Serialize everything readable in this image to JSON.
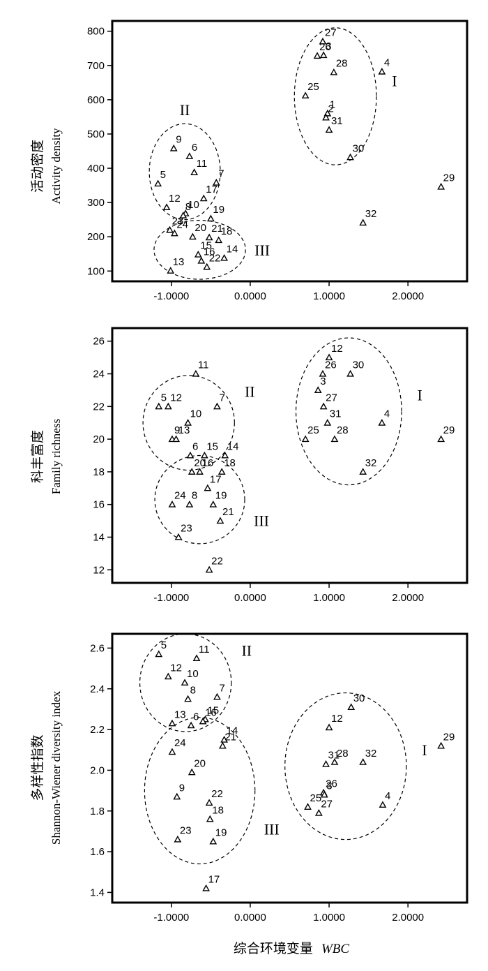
{
  "chart_data": [
    {
      "type": "scatter",
      "ylabel_cn": "活动密度",
      "ylabel_en": "Activity density",
      "xlim": [
        -1.75,
        2.75
      ],
      "ylim": [
        70,
        830
      ],
      "xticks": [
        -1.0,
        0.0,
        1.0,
        2.0
      ],
      "xticklabels": [
        "-1.0000",
        "0.0000",
        "1.0000",
        "2.0000"
      ],
      "yticks": [
        100,
        200,
        300,
        400,
        500,
        600,
        700,
        800
      ],
      "yticklabels": [
        "100",
        "200",
        "300",
        "400",
        "500",
        "600",
        "700",
        "800"
      ],
      "points": [
        {
          "label": "27",
          "x": 0.92,
          "y": 770
        },
        {
          "label": "26",
          "x": 0.85,
          "y": 728
        },
        {
          "label": "3",
          "x": 0.93,
          "y": 730
        },
        {
          "label": "28",
          "x": 1.06,
          "y": 680
        },
        {
          "label": "4",
          "x": 1.67,
          "y": 682
        },
        {
          "label": "25",
          "x": 0.7,
          "y": 612
        },
        {
          "label": "1",
          "x": 0.98,
          "y": 560
        },
        {
          "label": "2",
          "x": 0.96,
          "y": 548
        },
        {
          "label": "31",
          "x": 1.0,
          "y": 512
        },
        {
          "label": "30",
          "x": 1.27,
          "y": 432
        },
        {
          "label": "29",
          "x": 2.42,
          "y": 346
        },
        {
          "label": "32",
          "x": 1.43,
          "y": 241
        },
        {
          "label": "9",
          "x": -0.97,
          "y": 458
        },
        {
          "label": "6",
          "x": -0.77,
          "y": 435
        },
        {
          "label": "11",
          "x": -0.71,
          "y": 388
        },
        {
          "label": "7",
          "x": -0.43,
          "y": 358
        },
        {
          "label": "5",
          "x": -1.17,
          "y": 355
        },
        {
          "label": "17",
          "x": -0.59,
          "y": 312
        },
        {
          "label": "12",
          "x": -1.06,
          "y": 286
        },
        {
          "label": "10",
          "x": -0.82,
          "y": 268
        },
        {
          "label": "8",
          "x": -0.85,
          "y": 262
        },
        {
          "label": "19",
          "x": -0.5,
          "y": 253
        },
        {
          "label": "23",
          "x": -1.02,
          "y": 220
        },
        {
          "label": "24",
          "x": -0.96,
          "y": 210
        },
        {
          "label": "20",
          "x": -0.73,
          "y": 200
        },
        {
          "label": "21",
          "x": -0.52,
          "y": 198
        },
        {
          "label": "15",
          "x": -0.66,
          "y": 148
        },
        {
          "label": "18",
          "x": -0.4,
          "y": 190
        },
        {
          "label": "14",
          "x": -0.33,
          "y": 138
        },
        {
          "label": "13",
          "x": -1.01,
          "y": 101
        },
        {
          "label": "16",
          "x": -0.62,
          "y": 130
        },
        {
          "label": "22",
          "x": -0.55,
          "y": 112
        }
      ],
      "clusters": [
        {
          "name": "I",
          "cx": 1.08,
          "cy": 610,
          "rx": 0.52,
          "ry": 200
        },
        {
          "name": "II",
          "cx": -0.83,
          "cy": 390,
          "rx": 0.45,
          "ry": 140
        },
        {
          "name": "III",
          "cx": -0.64,
          "cy": 162,
          "rx": 0.58,
          "ry": 86
        }
      ]
    },
    {
      "type": "scatter",
      "ylabel_cn": "科丰富度",
      "ylabel_en": "Family richness",
      "xlim": [
        -1.75,
        2.75
      ],
      "ylim": [
        11.2,
        26.8
      ],
      "xticks": [
        -1.0,
        0.0,
        1.0,
        2.0
      ],
      "xticklabels": [
        "-1.0000",
        "0.0000",
        "1.0000",
        "2.0000"
      ],
      "yticks": [
        12,
        14,
        16,
        18,
        20,
        22,
        24,
        26
      ],
      "yticklabels": [
        "12",
        "14",
        "16",
        "18",
        "20",
        "22",
        "24",
        "26"
      ],
      "points": [
        {
          "label": "12",
          "x": 1.0,
          "y": 25
        },
        {
          "label": "26",
          "x": 0.92,
          "y": 24
        },
        {
          "label": "30",
          "x": 1.27,
          "y": 24
        },
        {
          "label": "3",
          "x": 0.86,
          "y": 23
        },
        {
          "label": "27",
          "x": 0.93,
          "y": 22
        },
        {
          "label": "31",
          "x": 0.98,
          "y": 21
        },
        {
          "label": "4",
          "x": 1.67,
          "y": 21
        },
        {
          "label": "25",
          "x": 0.7,
          "y": 20
        },
        {
          "label": "28",
          "x": 1.07,
          "y": 20
        },
        {
          "label": "32",
          "x": 1.43,
          "y": 18
        },
        {
          "label": "29",
          "x": 2.42,
          "y": 20
        },
        {
          "label": "11",
          "x": -0.69,
          "y": 24
        },
        {
          "label": "5",
          "x": -1.16,
          "y": 22
        },
        {
          "label": "12",
          "x": -1.04,
          "y": 22
        },
        {
          "label": "7",
          "x": -0.42,
          "y": 22
        },
        {
          "label": "10",
          "x": -0.79,
          "y": 21
        },
        {
          "label": "9",
          "x": -0.99,
          "y": 20
        },
        {
          "label": "13",
          "x": -0.94,
          "y": 20
        },
        {
          "label": "6",
          "x": -0.76,
          "y": 19
        },
        {
          "label": "15",
          "x": -0.58,
          "y": 19
        },
        {
          "label": "14",
          "x": -0.32,
          "y": 19
        },
        {
          "label": "20",
          "x": -0.74,
          "y": 18
        },
        {
          "label": "18",
          "x": -0.36,
          "y": 18
        },
        {
          "label": "16",
          "x": -0.64,
          "y": 18
        },
        {
          "label": "17",
          "x": -0.54,
          "y": 17
        },
        {
          "label": "24",
          "x": -0.99,
          "y": 16
        },
        {
          "label": "8",
          "x": -0.77,
          "y": 16
        },
        {
          "label": "19",
          "x": -0.47,
          "y": 16
        },
        {
          "label": "21",
          "x": -0.38,
          "y": 15
        },
        {
          "label": "23",
          "x": -0.91,
          "y": 14
        },
        {
          "label": "22",
          "x": -0.52,
          "y": 12
        }
      ],
      "clusters": [
        {
          "name": "I",
          "cx": 1.25,
          "cy": 21.7,
          "rx": 0.67,
          "ry": 4.5
        },
        {
          "name": "II",
          "cx": -0.78,
          "cy": 21.0,
          "rx": 0.58,
          "ry": 2.9
        },
        {
          "name": "III",
          "cx": -0.64,
          "cy": 16.3,
          "rx": 0.57,
          "ry": 2.7
        }
      ]
    },
    {
      "type": "scatter",
      "ylabel_cn": "多样性指数",
      "ylabel_en": "Shannon-Wiener diversity index",
      "xlabel_cn": "综合环境变量",
      "xlabel_en": "WBC",
      "xlim": [
        -1.75,
        2.75
      ],
      "ylim": [
        1.35,
        2.67
      ],
      "xticks": [
        -1.0,
        0.0,
        1.0,
        2.0
      ],
      "xticklabels": [
        "-1.0000",
        "0.0000",
        "1.0000",
        "2.0000"
      ],
      "yticks": [
        1.4,
        1.6,
        1.8,
        2.0,
        2.2,
        2.4,
        2.6
      ],
      "yticklabels": [
        "1.4",
        "1.6",
        "1.8",
        "2.0",
        "2.2",
        "2.4",
        "2.6"
      ],
      "points": [
        {
          "label": "5",
          "x": -1.16,
          "y": 2.57
        },
        {
          "label": "11",
          "x": -0.68,
          "y": 2.55
        },
        {
          "label": "12",
          "x": -1.04,
          "y": 2.46
        },
        {
          "label": "10",
          "x": -0.83,
          "y": 2.43
        },
        {
          "label": "8",
          "x": -0.79,
          "y": 2.35
        },
        {
          "label": "7",
          "x": -0.42,
          "y": 2.36
        },
        {
          "label": "13",
          "x": -0.99,
          "y": 2.23
        },
        {
          "label": "15",
          "x": -0.57,
          "y": 2.25
        },
        {
          "label": "6",
          "x": -0.75,
          "y": 2.22
        },
        {
          "label": "16",
          "x": -0.6,
          "y": 2.24
        },
        {
          "label": "14",
          "x": -0.33,
          "y": 2.15
        },
        {
          "label": "21",
          "x": -0.35,
          "y": 2.12
        },
        {
          "label": "24",
          "x": -0.99,
          "y": 2.09
        },
        {
          "label": "20",
          "x": -0.74,
          "y": 1.99
        },
        {
          "label": "9",
          "x": -0.93,
          "y": 1.87
        },
        {
          "label": "22",
          "x": -0.52,
          "y": 1.84
        },
        {
          "label": "18",
          "x": -0.51,
          "y": 1.76
        },
        {
          "label": "23",
          "x": -0.92,
          "y": 1.66
        },
        {
          "label": "19",
          "x": -0.47,
          "y": 1.65
        },
        {
          "label": "17",
          "x": -0.56,
          "y": 1.42
        },
        {
          "label": "30",
          "x": 1.28,
          "y": 2.31
        },
        {
          "label": "12",
          "x": 1.0,
          "y": 2.21
        },
        {
          "label": "31",
          "x": 0.96,
          "y": 2.03
        },
        {
          "label": "28",
          "x": 1.07,
          "y": 2.04
        },
        {
          "label": "32",
          "x": 1.43,
          "y": 2.04
        },
        {
          "label": "26",
          "x": 0.93,
          "y": 1.89
        },
        {
          "label": "25",
          "x": 0.73,
          "y": 1.82
        },
        {
          "label": "27",
          "x": 0.87,
          "y": 1.79
        },
        {
          "label": "4",
          "x": 1.68,
          "y": 1.83
        },
        {
          "label": "3",
          "x": 0.94,
          "y": 1.88
        },
        {
          "label": "29",
          "x": 2.42,
          "y": 2.12
        }
      ],
      "clusters": [
        {
          "name": "I",
          "cx": 1.21,
          "cy": 2.02,
          "rx": 0.77,
          "ry": 0.36
        },
        {
          "name": "II",
          "cx": -0.82,
          "cy": 2.43,
          "rx": 0.58,
          "ry": 0.24
        },
        {
          "name": "III",
          "cx": -0.64,
          "cy": 1.9,
          "rx": 0.7,
          "ry": 0.36
        }
      ]
    }
  ]
}
